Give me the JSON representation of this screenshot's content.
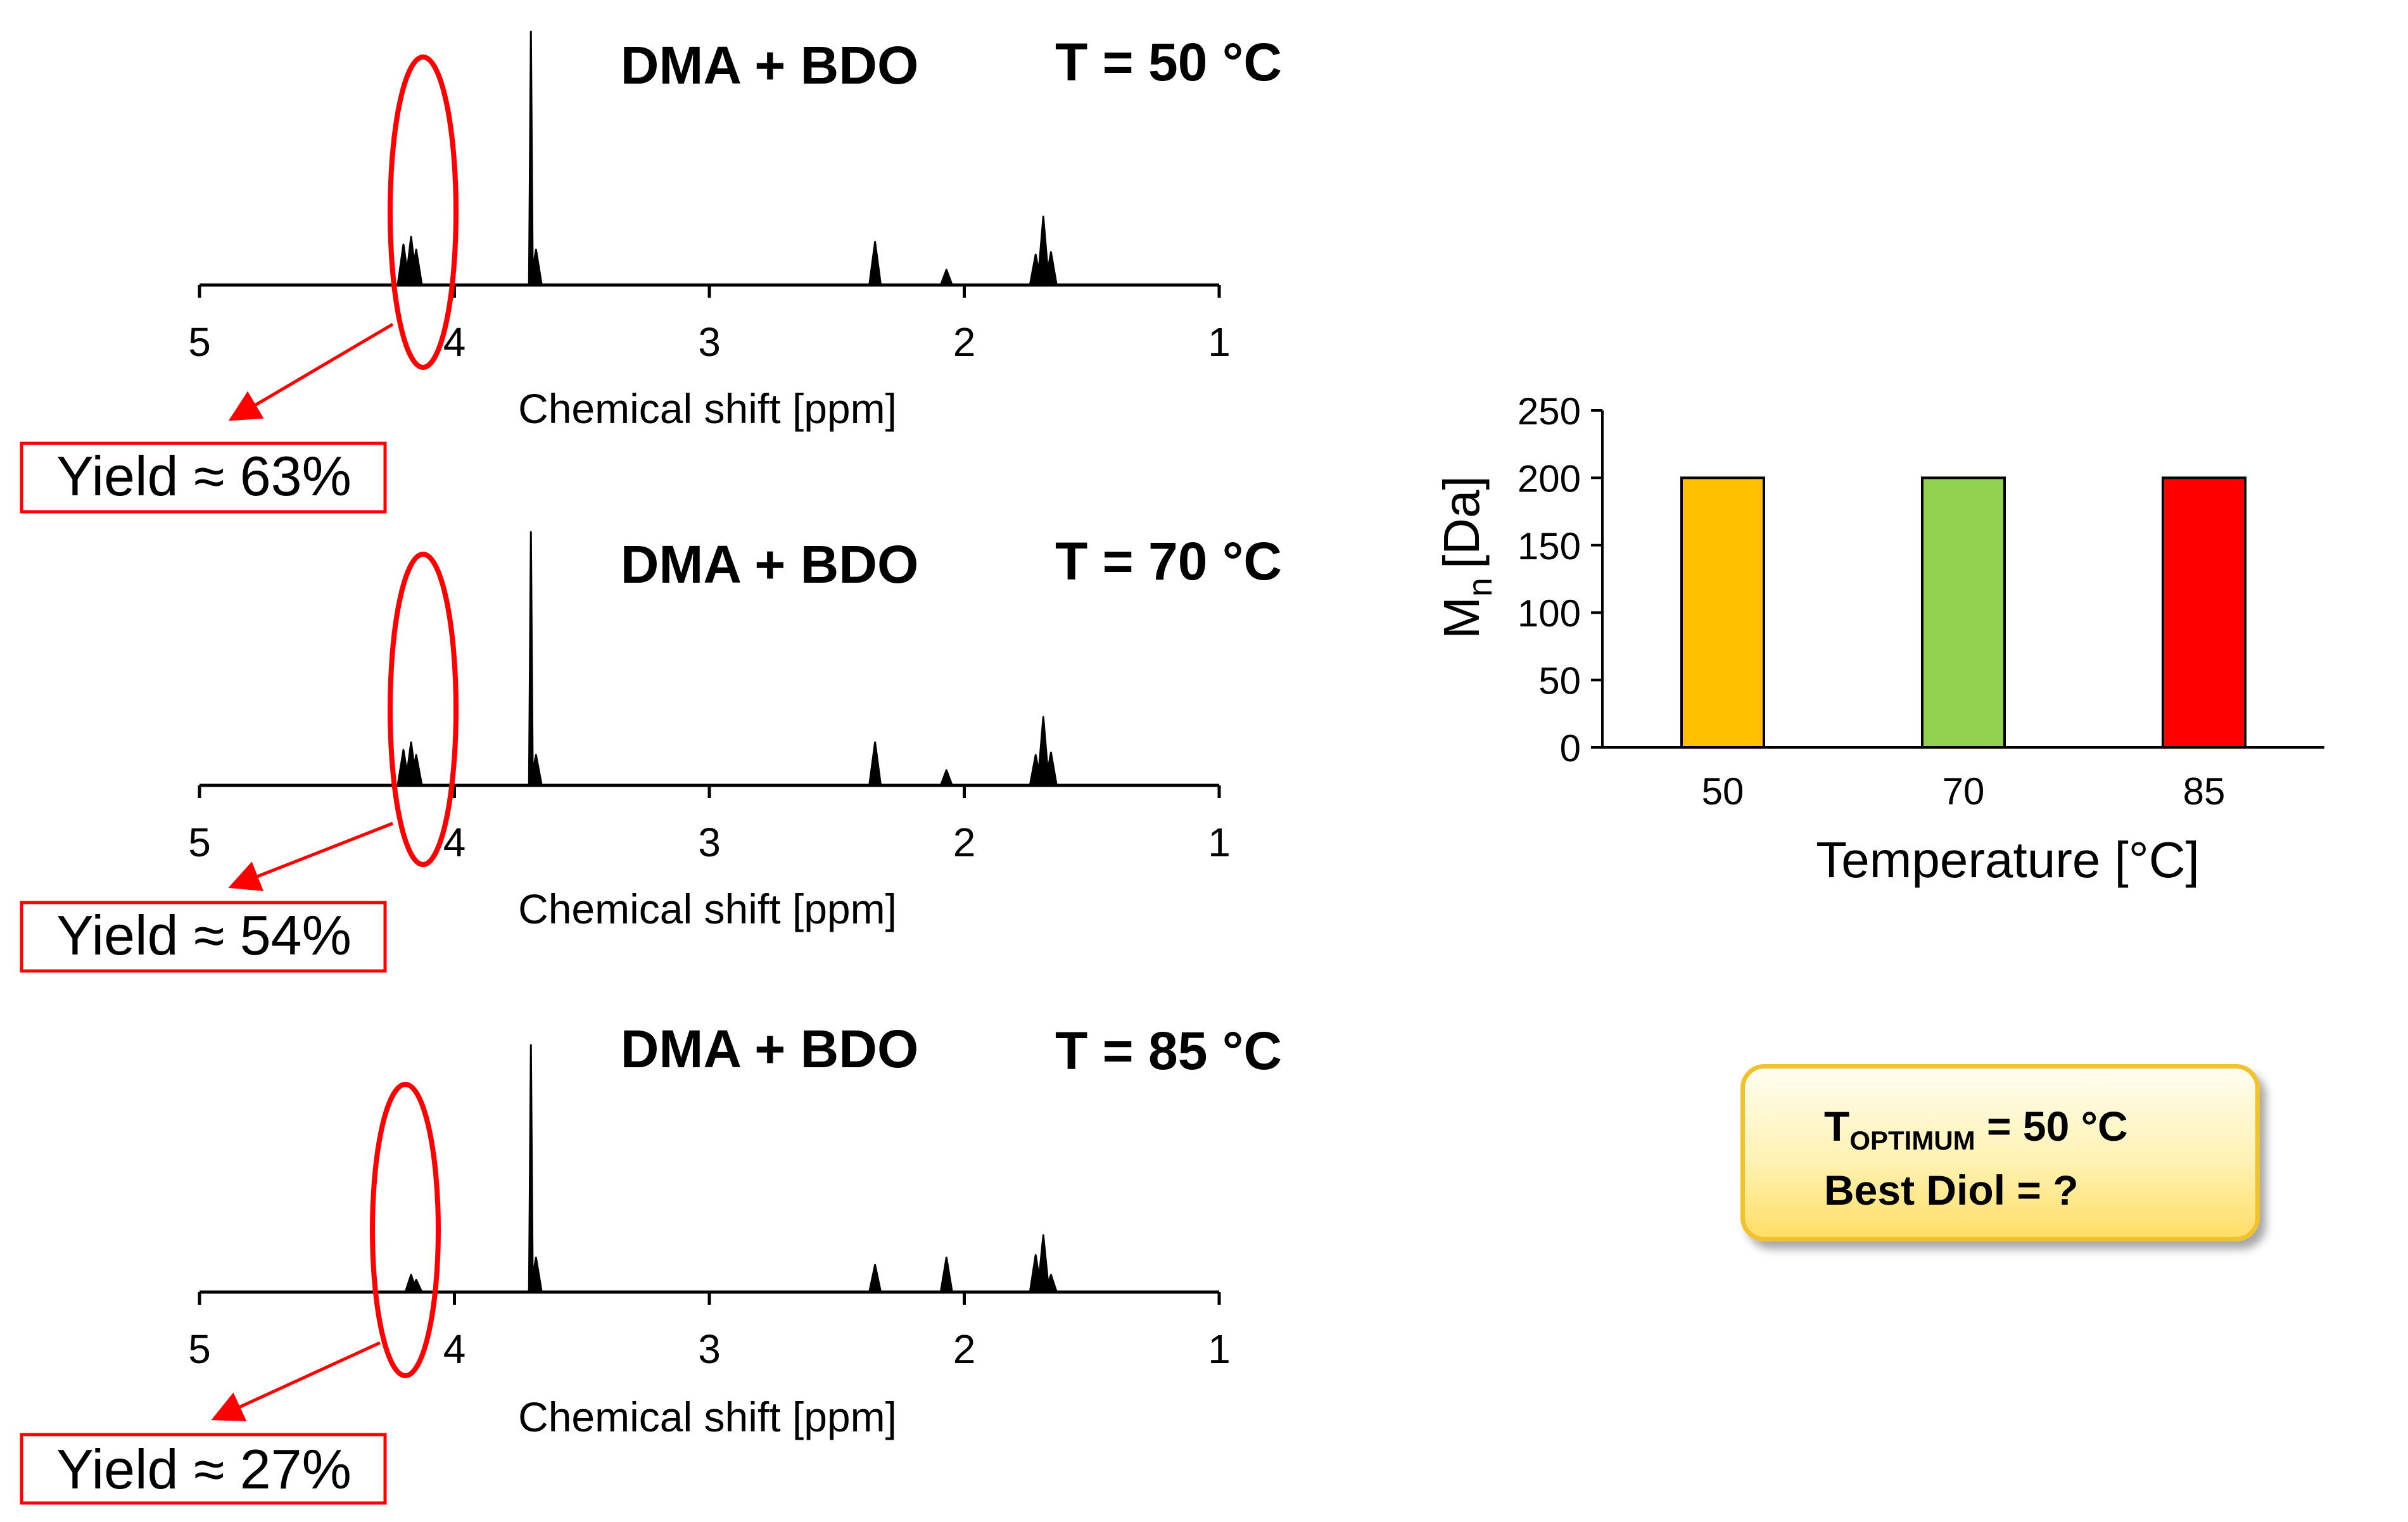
{
  "colors": {
    "highlight": "#ff0000",
    "spectrum": "#000000",
    "callout_border": "#f2c12e",
    "callout_fill": "#ffe680"
  },
  "chart_data": [
    {
      "type": "line",
      "title": "DMA + BDO",
      "subtitle": "T = 50 °C",
      "xlabel": "Chemical shift [ppm]",
      "xticks": [
        "5",
        "4",
        "3",
        "2",
        "1"
      ],
      "xlim": [
        5,
        1
      ],
      "reversed_x": true,
      "annotation": "Yield ≈ 63%",
      "highlight_region_ppm": 4.18,
      "peaks": [
        {
          "x": 4.2,
          "y": 0.16
        },
        {
          "x": 4.17,
          "y": 0.19
        },
        {
          "x": 4.15,
          "y": 0.14
        },
        {
          "x": 3.7,
          "y": 1.0
        },
        {
          "x": 3.68,
          "y": 0.14
        },
        {
          "x": 2.35,
          "y": 0.17
        },
        {
          "x": 2.07,
          "y": 0.06
        },
        {
          "x": 1.72,
          "y": 0.12
        },
        {
          "x": 1.69,
          "y": 0.27
        },
        {
          "x": 1.66,
          "y": 0.13
        }
      ]
    },
    {
      "type": "line",
      "title": "DMA + BDO",
      "subtitle": "T = 70 °C",
      "xlabel": "Chemical shift [ppm]",
      "xticks": [
        "5",
        "4",
        "3",
        "2",
        "1"
      ],
      "xlim": [
        5,
        1
      ],
      "reversed_x": true,
      "annotation": "Yield ≈ 54%",
      "highlight_region_ppm": 4.18,
      "peaks": [
        {
          "x": 4.2,
          "y": 0.14
        },
        {
          "x": 4.17,
          "y": 0.17
        },
        {
          "x": 4.15,
          "y": 0.12
        },
        {
          "x": 3.7,
          "y": 1.0
        },
        {
          "x": 3.68,
          "y": 0.12
        },
        {
          "x": 2.35,
          "y": 0.17
        },
        {
          "x": 2.07,
          "y": 0.06
        },
        {
          "x": 1.72,
          "y": 0.12
        },
        {
          "x": 1.69,
          "y": 0.27
        },
        {
          "x": 1.66,
          "y": 0.13
        }
      ]
    },
    {
      "type": "line",
      "title": "DMA + BDO",
      "subtitle": "T = 85 °C",
      "xlabel": "Chemical shift [ppm]",
      "xticks": [
        "5",
        "4",
        "3",
        "2",
        "1"
      ],
      "xlim": [
        5,
        1
      ],
      "reversed_x": true,
      "annotation": "Yield ≈ 27%",
      "highlight_region_ppm": 4.18,
      "peaks": [
        {
          "x": 4.17,
          "y": 0.07
        },
        {
          "x": 4.15,
          "y": 0.05
        },
        {
          "x": 3.7,
          "y": 1.0
        },
        {
          "x": 3.68,
          "y": 0.14
        },
        {
          "x": 2.35,
          "y": 0.11
        },
        {
          "x": 2.07,
          "y": 0.14
        },
        {
          "x": 1.72,
          "y": 0.15
        },
        {
          "x": 1.69,
          "y": 0.23
        },
        {
          "x": 1.66,
          "y": 0.07
        }
      ]
    },
    {
      "type": "bar",
      "categories": [
        "50",
        "70",
        "85"
      ],
      "values": [
        200,
        200,
        200
      ],
      "colors": [
        "#ffc000",
        "#92d050",
        "#ff0000"
      ],
      "xlabel": "Temperature [°C]",
      "ylabel_main": "M",
      "ylabel_sub": "n",
      "ylabel_unit": "[Da]",
      "ylim": [
        0,
        250
      ],
      "yticks": [
        0,
        50,
        100,
        150,
        200,
        250
      ],
      "grid": false,
      "legend": "none"
    }
  ],
  "callout": {
    "line1_main": "T",
    "line1_sub": "OPTIMUM",
    "line1_rest": " = 50 °C",
    "line2": "Best Diol = ?"
  }
}
